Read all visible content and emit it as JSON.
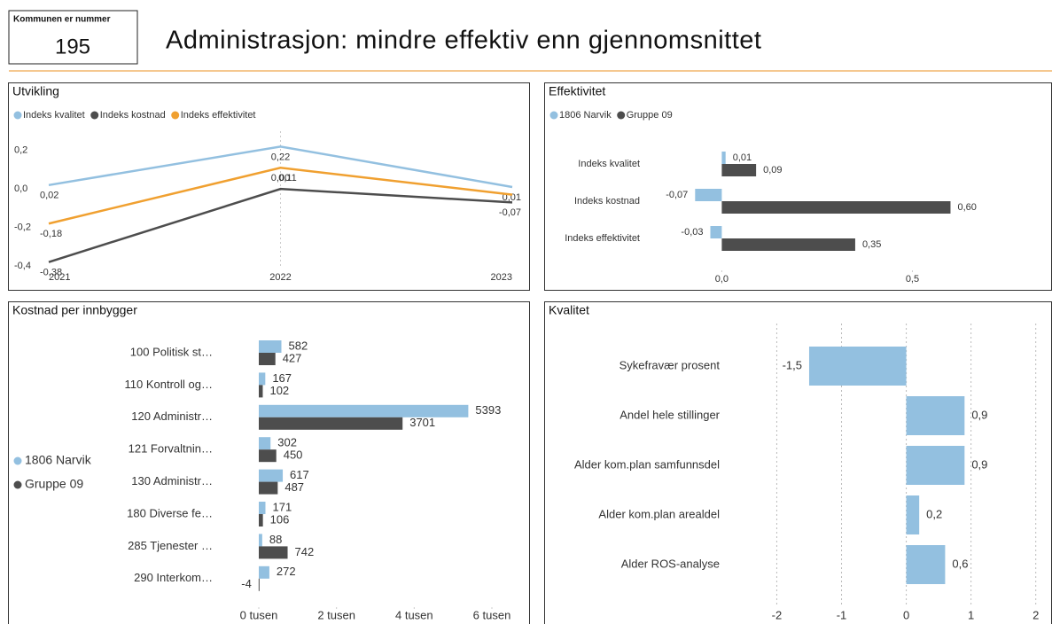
{
  "header": {
    "label": "Kommunen er nummer",
    "number": "195",
    "title": "Administrasjon: mindre effektiv enn gjennomsnittet"
  },
  "chart_data": [
    {
      "type": "line",
      "title": "Utvikling",
      "categories": [
        "2021",
        "2022",
        "2023"
      ],
      "series": [
        {
          "name": "Indeks kvalitet",
          "color": "#93c0e0",
          "values": [
            0.02,
            0.22,
            0.01
          ],
          "value_labels": [
            "0,02",
            "0,22",
            "0,01"
          ]
        },
        {
          "name": "Indeks kostnad",
          "color": "#4d4d4d",
          "values": [
            -0.38,
            0.0,
            -0.07
          ],
          "value_labels": [
            "-0,38",
            "0,00",
            "-0,07"
          ]
        },
        {
          "name": "Indeks effektivitet",
          "color": "#f0a030",
          "values": [
            -0.18,
            0.11,
            -0.03
          ],
          "value_labels": [
            "-0,18",
            "0,11",
            null
          ]
        }
      ],
      "ylim": [
        -0.4,
        0.3
      ],
      "yticks": [
        {
          "value": -0.4,
          "label": "-0,4"
        },
        {
          "value": -0.2,
          "label": "-0,2"
        },
        {
          "value": 0,
          "label": "0,0"
        },
        {
          "value": 0.2,
          "label": "0,2"
        }
      ]
    },
    {
      "type": "hbar",
      "title": "Effektivitet",
      "categories": [
        "Indeks kvalitet",
        "Indeks kostnad",
        "Indeks effektivitet"
      ],
      "series": [
        {
          "name": "1806 Narvik",
          "color": "#93c0e0",
          "values": [
            0.01,
            -0.07,
            -0.03
          ],
          "value_labels": [
            "0,01",
            "-0,07",
            "-0,03"
          ]
        },
        {
          "name": "Gruppe 09",
          "color": "#4d4d4d",
          "values": [
            0.09,
            0.6,
            0.35
          ],
          "value_labels": [
            "0,09",
            "0,60",
            "0,35"
          ]
        }
      ],
      "xlim": [
        -0.08,
        0.85
      ],
      "xticks": [
        {
          "value": 0,
          "label": "0,0"
        },
        {
          "value": 0.5,
          "label": "0,5"
        }
      ]
    },
    {
      "type": "hbar",
      "title": "Kostnad per innbygger",
      "categories": [
        "100 Politisk st…",
        "110 Kontroll og…",
        "120 Administr…",
        "121 Forvaltnin…",
        "130 Administr…",
        "180 Diverse fe…",
        "285 Tjenester …",
        "290 Interkom…"
      ],
      "series": [
        {
          "name": "1806 Narvik",
          "color": "#93c0e0",
          "values": [
            582,
            167,
            5393,
            302,
            617,
            171,
            88,
            272
          ]
        },
        {
          "name": "Gruppe 09",
          "color": "#4d4d4d",
          "values": [
            427,
            102,
            3701,
            450,
            487,
            106,
            742,
            -4
          ]
        }
      ],
      "xlim": [
        0,
        6000
      ],
      "xticks": [
        {
          "value": 0,
          "label": "0 tusen"
        },
        {
          "value": 2000,
          "label": "2 tusen"
        },
        {
          "value": 4000,
          "label": "4 tusen"
        },
        {
          "value": 6000,
          "label": "6 tusen"
        }
      ]
    },
    {
      "type": "hbar",
      "title": "Kvalitet",
      "categories": [
        "Sykefravær prosent",
        "Andel hele stillinger",
        "Alder kom.plan samfunnsdel",
        "Alder kom.plan arealdel",
        "Alder ROS-analyse"
      ],
      "series": [
        {
          "color": "#93c0e0",
          "values": [
            -1.5,
            0.9,
            0.9,
            0.2,
            0.6
          ],
          "value_labels": [
            "-1,5",
            "0,9",
            "0,9",
            "0,2",
            "0,6"
          ]
        }
      ],
      "grid": true,
      "xlim": [
        -2.8,
        2.1
      ],
      "xticks": [
        -2,
        -1,
        0,
        1,
        2
      ]
    }
  ]
}
